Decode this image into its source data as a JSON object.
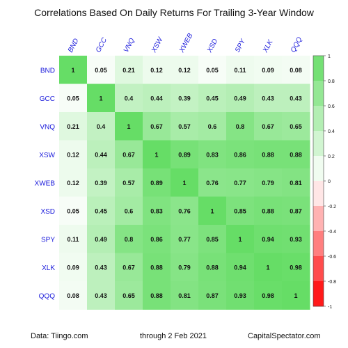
{
  "chart_data": {
    "type": "heatmap",
    "title": "Correlations Based On Daily Returns For Trailing 3-Year Window",
    "columns": [
      "BND",
      "GCC",
      "VNQ",
      "XSW",
      "XWEB",
      "XSD",
      "SPY",
      "XLK",
      "QQQ"
    ],
    "rows": [
      "BND",
      "GCC",
      "VNQ",
      "XSW",
      "XWEB",
      "XSD",
      "SPY",
      "XLK",
      "QQQ"
    ],
    "values": [
      [
        1,
        0.05,
        0.21,
        0.12,
        0.12,
        0.05,
        0.11,
        0.09,
        0.08
      ],
      [
        0.05,
        1,
        0.4,
        0.44,
        0.39,
        0.45,
        0.49,
        0.43,
        0.43
      ],
      [
        0.21,
        0.4,
        1,
        0.67,
        0.57,
        0.6,
        0.8,
        0.67,
        0.65
      ],
      [
        0.12,
        0.44,
        0.67,
        1,
        0.89,
        0.83,
        0.86,
        0.88,
        0.88
      ],
      [
        0.12,
        0.39,
        0.57,
        0.89,
        1,
        0.76,
        0.77,
        0.79,
        0.81
      ],
      [
        0.05,
        0.45,
        0.6,
        0.83,
        0.76,
        1,
        0.85,
        0.88,
        0.87
      ],
      [
        0.11,
        0.49,
        0.8,
        0.86,
        0.77,
        0.85,
        1,
        0.94,
        0.93
      ],
      [
        0.09,
        0.43,
        0.67,
        0.88,
        0.79,
        0.88,
        0.94,
        1,
        0.98
      ],
      [
        0.08,
        0.43,
        0.65,
        0.88,
        0.81,
        0.87,
        0.93,
        0.98,
        1
      ]
    ],
    "color_scale": {
      "range": [
        -1,
        1
      ],
      "ticks": [
        1,
        0.8,
        0.6,
        0.4,
        0.2,
        0,
        -0.2,
        -0.4,
        -0.6,
        -0.8,
        -1
      ],
      "negative_color": "#ff0000",
      "midpoint_color": "#ffffff",
      "positive_color": "#66dd66"
    },
    "label_color": "#1a1adb"
  },
  "footer": {
    "source": "Data: Tiingo.com",
    "date": "through 2 Feb 2021",
    "site": "CapitalSpectator.com"
  }
}
